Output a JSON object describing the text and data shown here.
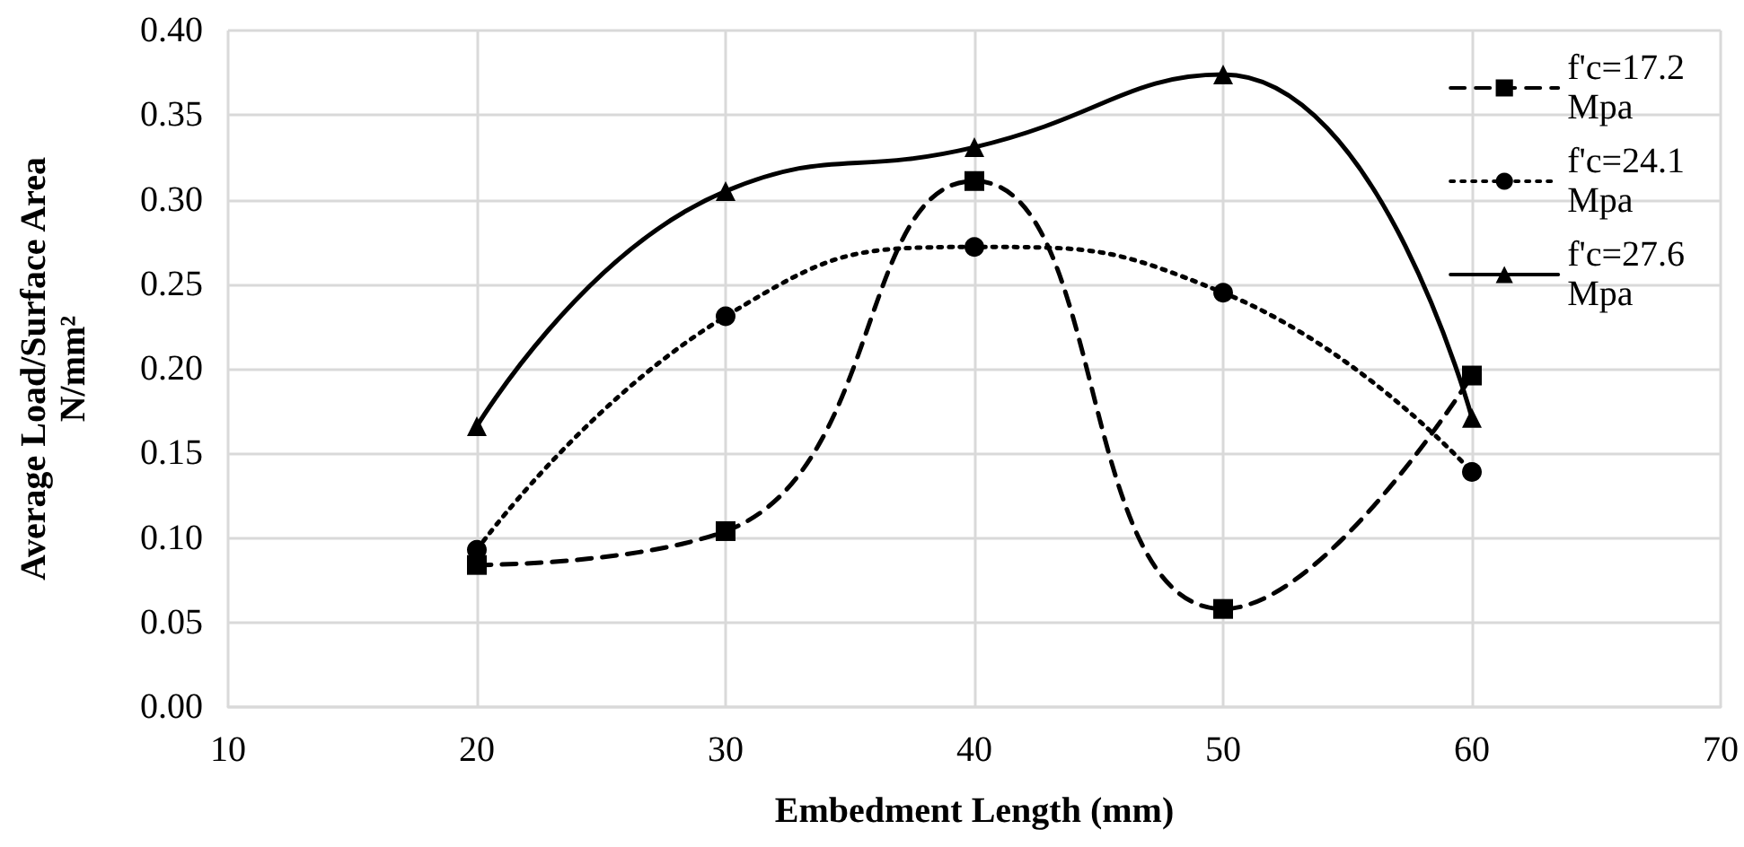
{
  "chart_data": {
    "type": "line",
    "xlabel": "Embedment Length (mm)",
    "ylabel": "Average Load/Surface Area N/mm²",
    "x": [
      20,
      30,
      40,
      50,
      60
    ],
    "series": [
      {
        "name": "f'c=17.2 Mpa",
        "color": "#000000",
        "line_style": "dashed",
        "marker": "square",
        "values": [
          0.084,
          0.104,
          0.311,
          0.058,
          0.196
        ]
      },
      {
        "name": "f'c=24.1 Mpa",
        "color": "#000000",
        "line_style": "dotted",
        "marker": "circle",
        "values": [
          0.093,
          0.231,
          0.272,
          0.245,
          0.139
        ]
      },
      {
        "name": "f'c=27.6 Mpa",
        "color": "#000000",
        "line_style": "solid",
        "marker": "triangle",
        "values": [
          0.166,
          0.305,
          0.331,
          0.374,
          0.171
        ]
      }
    ],
    "xlim": [
      10,
      70
    ],
    "xticks": [
      10,
      20,
      30,
      40,
      50,
      60,
      70
    ],
    "ylim": [
      0,
      0.4
    ],
    "yticks": [
      {
        "value": 0,
        "label": "0.00"
      },
      0.05,
      {
        "value": 0.1,
        "label": "0.10"
      },
      0.15,
      {
        "value": 0.2,
        "label": "0.20"
      },
      0.25,
      {
        "value": 0.3,
        "label": "0.30"
      },
      0.35,
      {
        "value": 0.4,
        "label": "0.40"
      }
    ],
    "grid": true,
    "legend": "top right"
  }
}
